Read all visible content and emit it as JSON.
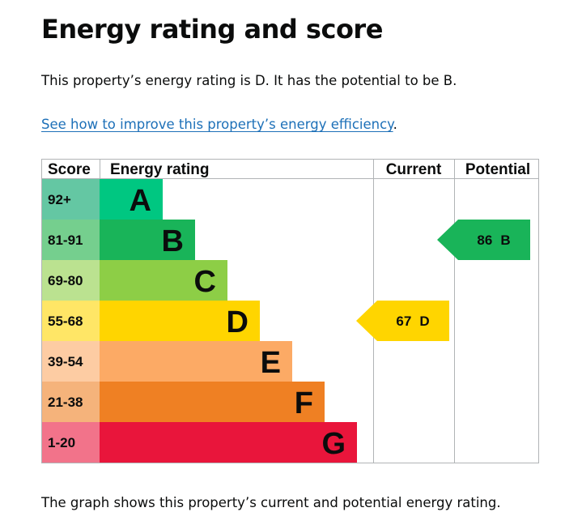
{
  "page": {
    "title": "Energy rating and score",
    "summary": "This property’s energy rating is D. It has the potential to be B.",
    "link_text": "See how to improve this property’s energy efficiency",
    "link_suffix": ".",
    "footer_text": "The graph shows this property’s current and potential energy rating."
  },
  "chart_data": {
    "type": "table",
    "headers": {
      "score": "Score",
      "rating": "Energy rating",
      "current": "Current",
      "potential": "Potential"
    },
    "bands": [
      {
        "letter": "A",
        "range": "92+",
        "color": "#008054",
        "score_bg": "#64c7a3"
      },
      {
        "letter": "B",
        "range": "81-91",
        "color": "#19b459",
        "score_bg": "#75cf8e"
      },
      {
        "letter": "C",
        "range": "69-80",
        "color": "#8dce46",
        "score_bg": "#bbe290"
      },
      {
        "letter": "D",
        "range": "55-68",
        "color": "#ffd500",
        "score_bg": "#ffe666"
      },
      {
        "letter": "E",
        "range": "39-54",
        "color": "#fcaa65",
        "score_bg": "#fdcca3"
      },
      {
        "letter": "F",
        "range": "21-38",
        "color": "#ef8023",
        "score_bg": "#f5b37b"
      },
      {
        "letter": "G",
        "range": "1-20",
        "color": "#e9153b",
        "score_bg": "#f2738a"
      }
    ],
    "band_A_color": "#00c781",
    "current": {
      "score": 67,
      "band": "D",
      "label": "67 D",
      "color": "#ffd500"
    },
    "potential": {
      "score": 86,
      "band": "B",
      "label": "86 B",
      "color": "#19b459"
    }
  }
}
